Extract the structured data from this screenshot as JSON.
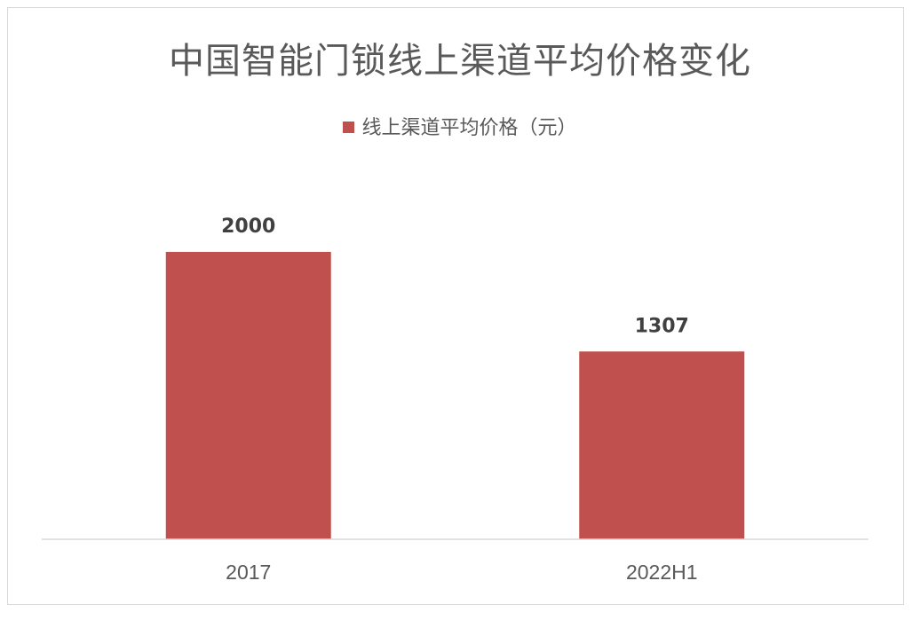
{
  "chart_data": {
    "type": "bar",
    "title": "中国智能门锁线上渠道平均价格变化",
    "categories": [
      "2017",
      "2022H1"
    ],
    "series": [
      {
        "name": "线上渠道平均价格（元）",
        "values": [
          2000,
          1307
        ],
        "color": "#c0504d"
      }
    ],
    "data_labels": [
      "2000",
      "1307"
    ],
    "ylim": [
      0,
      2000
    ],
    "grid": false,
    "legend_position": "top"
  }
}
